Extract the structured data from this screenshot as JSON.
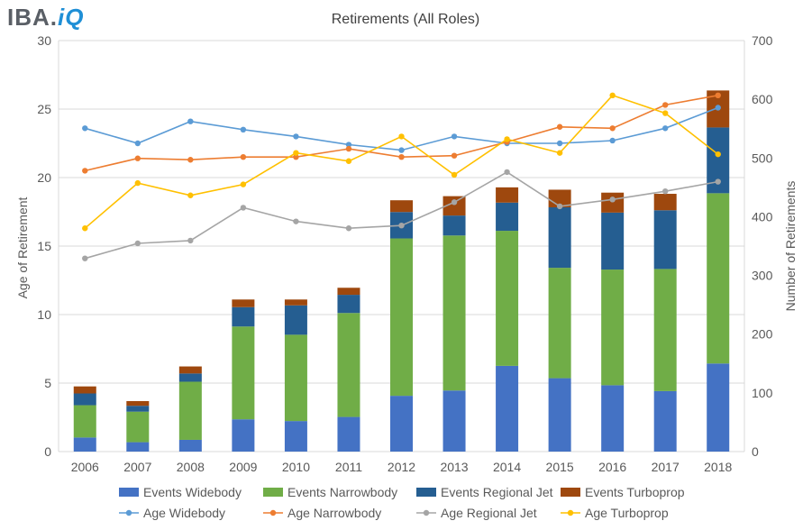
{
  "logo": {
    "part1": "IBA.",
    "part2": "iQ"
  },
  "colors": {
    "events_widebody": "#4472c4",
    "events_narrowbody": "#70ad47",
    "events_regional": "#255e91",
    "events_turboprop": "#9e480e",
    "age_widebody": "#5b9bd5",
    "age_narrowbody": "#ed7d31",
    "age_regional": "#a5a5a5",
    "age_turboprop": "#ffc000",
    "grid": "#d9d9d9",
    "text": "#595959"
  },
  "chart_data": {
    "type": "bar",
    "title": "Retirements (All Roles)",
    "ylabel": "Age of Retirement",
    "y2label": "Number of Retirements",
    "ylim": [
      0,
      30
    ],
    "y2lim": [
      0,
      700
    ],
    "yticks": [
      0,
      5,
      10,
      15,
      20,
      25,
      30
    ],
    "y2ticks": [
      0,
      100,
      200,
      300,
      400,
      500,
      600,
      700
    ],
    "grid": true,
    "legend": "bottom",
    "categories": [
      "2006",
      "2007",
      "2008",
      "2009",
      "2010",
      "2011",
      "2012",
      "2013",
      "2014",
      "2015",
      "2016",
      "2017",
      "2018"
    ],
    "bar_series": [
      {
        "name": "Events Widebody",
        "values": [
          24,
          16,
          20,
          55,
          52,
          59,
          95,
          104,
          146,
          125,
          113,
          103,
          150
        ]
      },
      {
        "name": "Events Narrowbody",
        "values": [
          55,
          52,
          99,
          158,
          147,
          177,
          268,
          264,
          230,
          188,
          197,
          208,
          290
        ]
      },
      {
        "name": "Events Regional Jet",
        "values": [
          20,
          10,
          14,
          33,
          50,
          31,
          45,
          34,
          48,
          103,
          97,
          100,
          112
        ]
      },
      {
        "name": "Events Turboprop",
        "values": [
          12,
          8,
          12,
          13,
          10,
          12,
          20,
          33,
          26,
          30,
          34,
          28,
          63
        ]
      }
    ],
    "line_series": [
      {
        "name": "Age Widebody",
        "values": [
          23.6,
          22.5,
          24.1,
          23.5,
          23.0,
          22.4,
          22.0,
          23.0,
          22.5,
          22.5,
          22.7,
          23.6,
          25.1
        ]
      },
      {
        "name": "Age Narrowbody",
        "values": [
          20.5,
          21.4,
          21.3,
          21.5,
          21.5,
          22.1,
          21.5,
          21.6,
          22.6,
          23.7,
          23.6,
          25.3,
          26.0
        ]
      },
      {
        "name": "Age Regional Jet",
        "values": [
          14.1,
          15.2,
          15.4,
          17.8,
          16.8,
          16.3,
          16.5,
          18.2,
          20.4,
          17.9,
          18.4,
          19.0,
          19.7
        ]
      },
      {
        "name": "Age Turboprop",
        "values": [
          16.3,
          19.6,
          18.7,
          19.5,
          21.8,
          21.2,
          23.0,
          20.2,
          22.8,
          21.8,
          26.0,
          24.7,
          21.7
        ]
      }
    ]
  }
}
